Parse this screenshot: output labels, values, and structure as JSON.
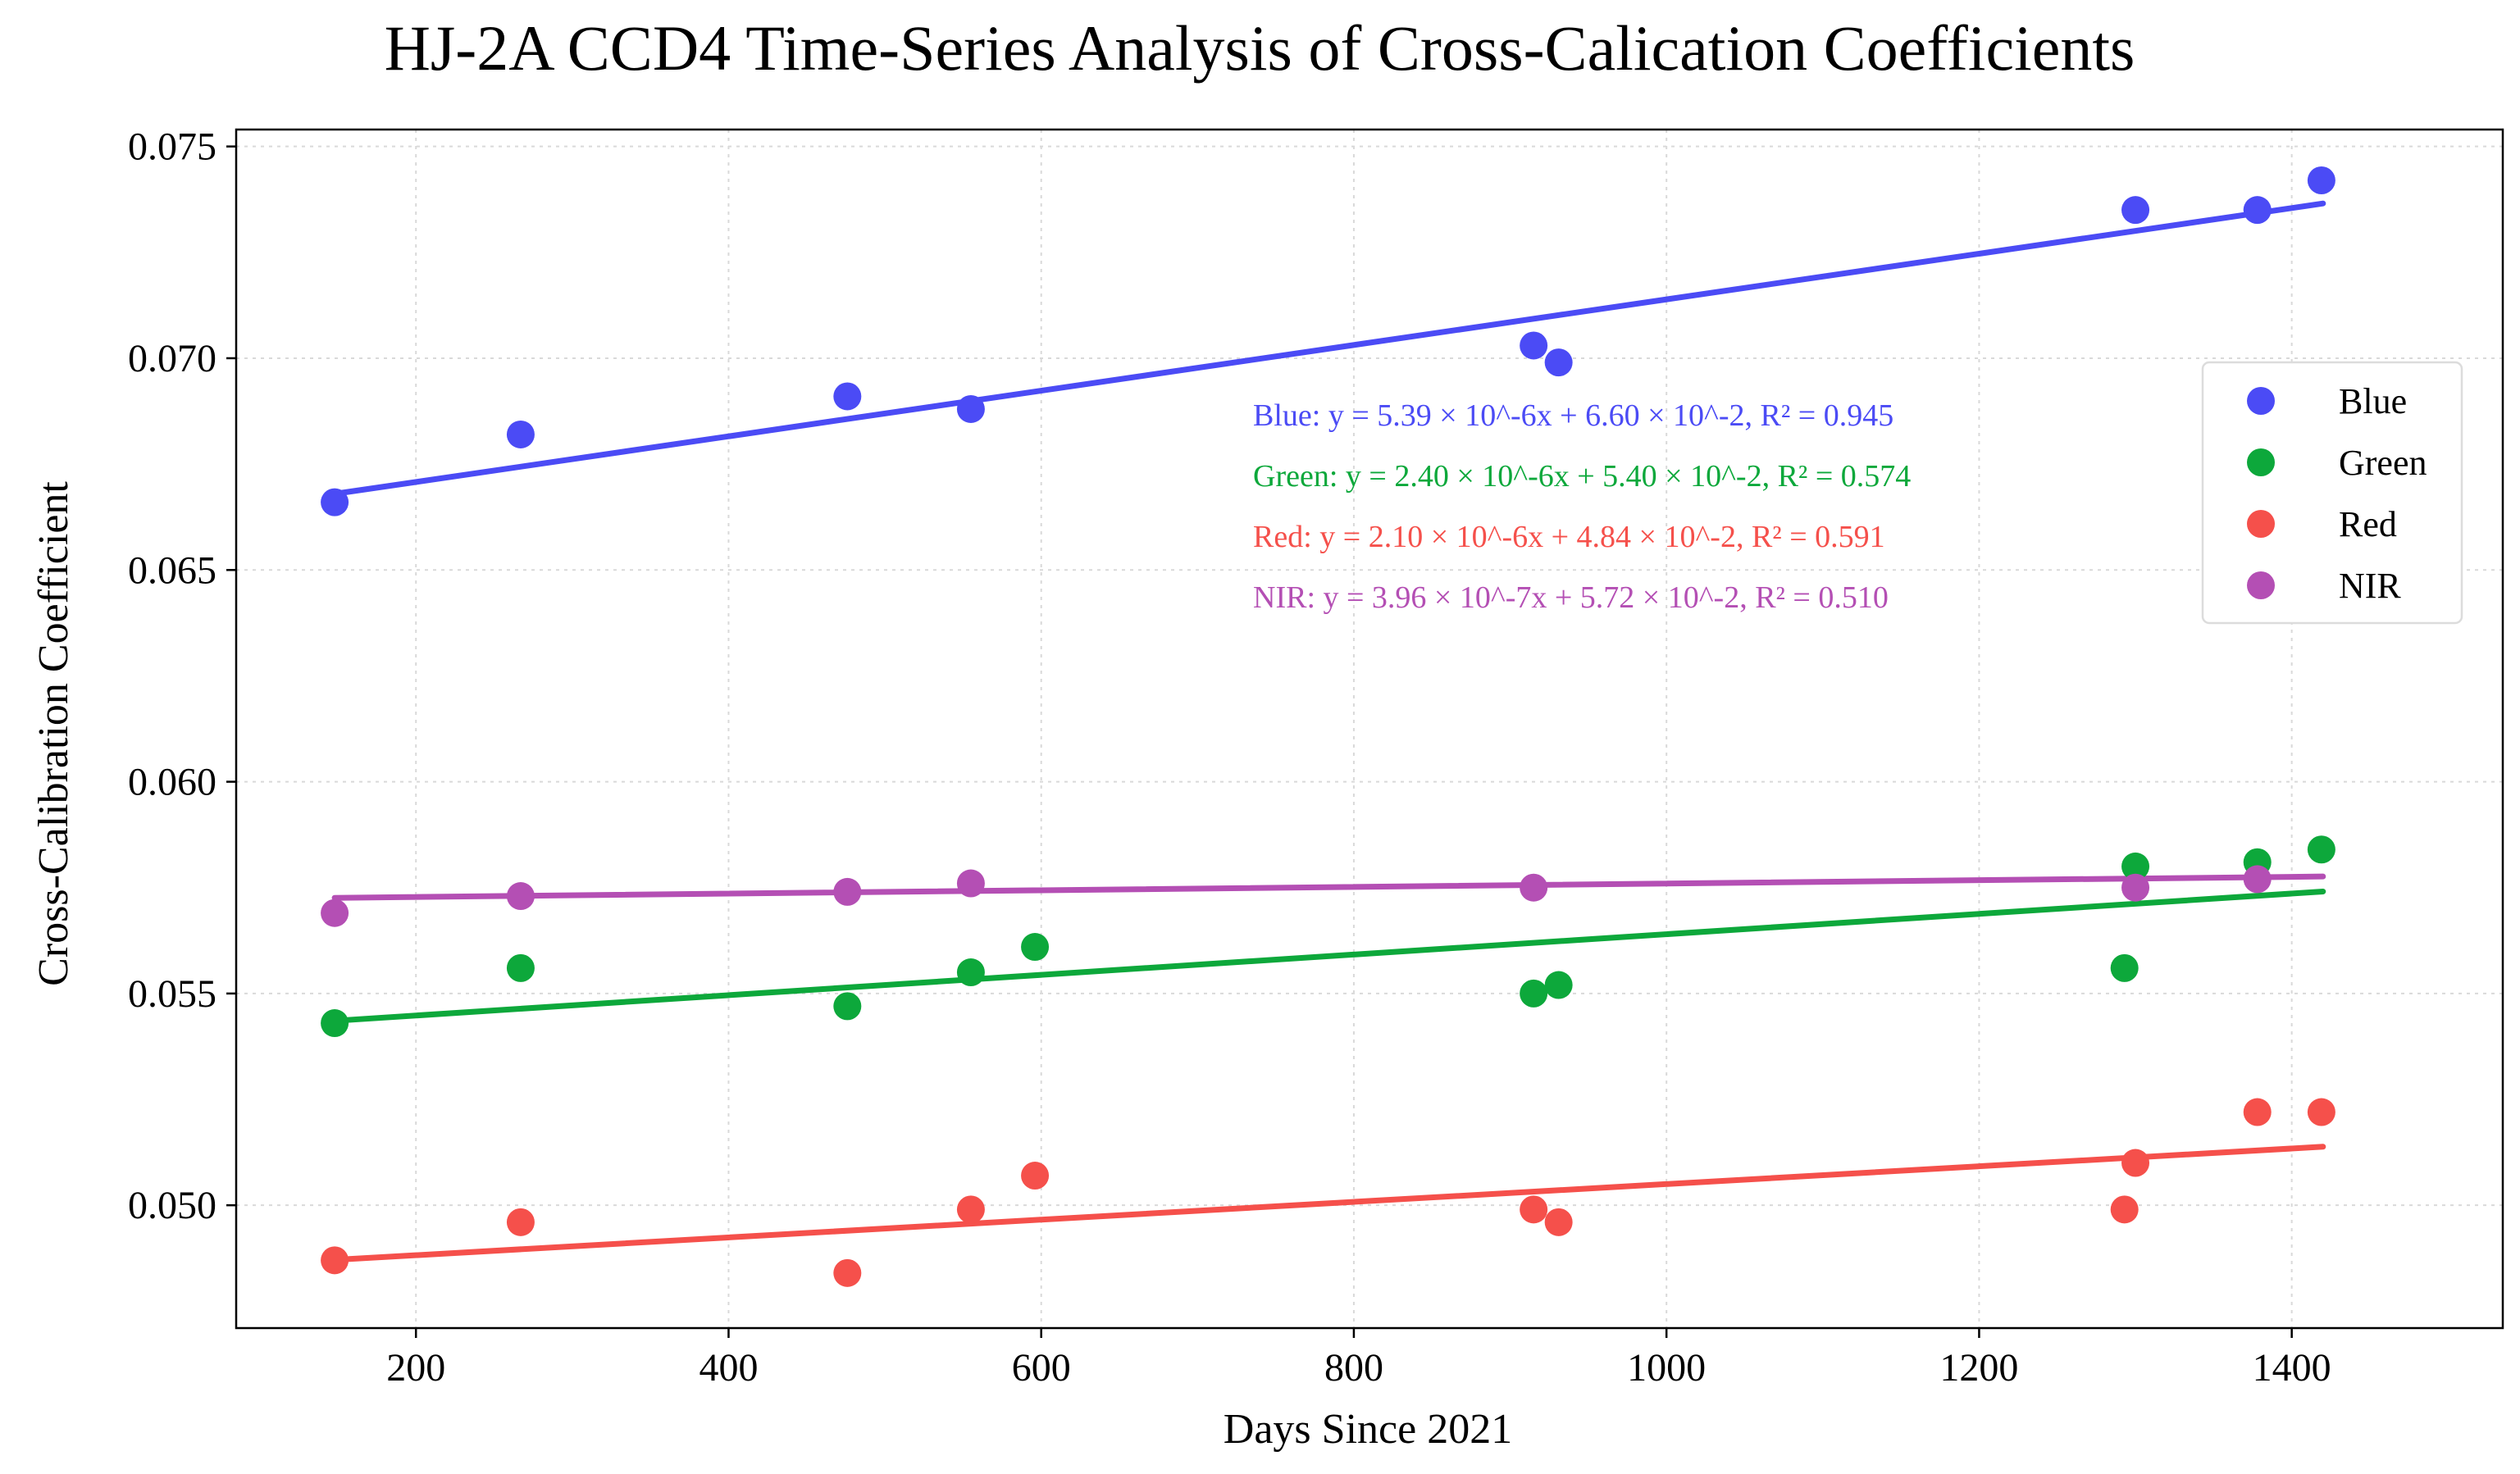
{
  "chart_data": {
    "type": "scatter",
    "title": "HJ-2A CCD4 Time-Series Analysis of Cross-Calication Coefficients",
    "xlabel": "Days Since 2021",
    "ylabel": "Cross-Calibration Coefficient",
    "xlim": [
      85,
      1535
    ],
    "ylim": [
      0.0471,
      0.0754
    ],
    "xticks": [
      200,
      400,
      600,
      800,
      1000,
      1200,
      1400
    ],
    "xtick_labels": [
      "200",
      "400",
      "600",
      "800",
      "1000",
      "1200",
      "1400"
    ],
    "yticks": [
      0.05,
      0.055,
      0.06,
      0.065,
      0.07,
      0.075
    ],
    "ytick_labels": [
      "0.050",
      "0.055",
      "0.060",
      "0.065",
      "0.070",
      "0.075"
    ],
    "grid": true,
    "legend_position": "right",
    "series": [
      {
        "name": "Blue",
        "color": "#4b4bf5",
        "points": [
          [
            148,
            0.0666
          ],
          [
            267,
            0.0682
          ],
          [
            476,
            0.0691
          ],
          [
            555,
            0.0688
          ],
          [
            915,
            0.0703
          ],
          [
            931,
            0.0699
          ],
          [
            1300,
            0.0735
          ],
          [
            1378,
            0.0735
          ],
          [
            1419,
            0.0742
          ]
        ],
        "fit": {
          "slope": 5.39e-06,
          "intercept": 0.066,
          "x_range": [
            148,
            1420
          ]
        },
        "equation": "Blue: y = 5.39 × 10^-6x + 6.60 × 10^-2, R² = 0.945"
      },
      {
        "name": "Green",
        "color": "#0da83b",
        "points": [
          [
            148,
            0.0543
          ],
          [
            267,
            0.0556
          ],
          [
            476,
            0.0547
          ],
          [
            555,
            0.0555
          ],
          [
            596,
            0.0561
          ],
          [
            915,
            0.055
          ],
          [
            931,
            0.0552
          ],
          [
            1293,
            0.0556
          ],
          [
            1300,
            0.058
          ],
          [
            1378,
            0.0581
          ],
          [
            1419,
            0.0584
          ]
        ],
        "fit": {
          "slope": 2.4e-06,
          "intercept": 0.054,
          "x_range": [
            148,
            1420
          ]
        },
        "equation": "Green: y = 2.40 × 10^-6x + 5.40 × 10^-2, R² = 0.574"
      },
      {
        "name": "Red",
        "color": "#f5504b",
        "points": [
          [
            148,
            0.0487
          ],
          [
            267,
            0.0496
          ],
          [
            476,
            0.0484
          ],
          [
            555,
            0.0499
          ],
          [
            596,
            0.0507
          ],
          [
            915,
            0.0499
          ],
          [
            931,
            0.0496
          ],
          [
            1293,
            0.0499
          ],
          [
            1300,
            0.051
          ],
          [
            1378,
            0.0522
          ],
          [
            1419,
            0.0522
          ]
        ],
        "fit": {
          "slope": 2.1e-06,
          "intercept": 0.0484,
          "x_range": [
            148,
            1420
          ]
        },
        "equation": "Red: y = 2.10 × 10^-6x + 4.84 × 10^-2, R² = 0.591"
      },
      {
        "name": "NIR",
        "color": "#b44fb4",
        "points": [
          [
            148,
            0.0569
          ],
          [
            267,
            0.0573
          ],
          [
            476,
            0.0574
          ],
          [
            555,
            0.0576
          ],
          [
            915,
            0.0575
          ],
          [
            1300,
            0.0575
          ],
          [
            1378,
            0.0577
          ]
        ],
        "fit": {
          "slope": 3.96e-07,
          "intercept": 0.0572,
          "x_range": [
            148,
            1420
          ]
        },
        "equation": "NIR: y = 3.96 × 10^-7x + 5.72 × 10^-2, R² = 0.510"
      }
    ]
  }
}
